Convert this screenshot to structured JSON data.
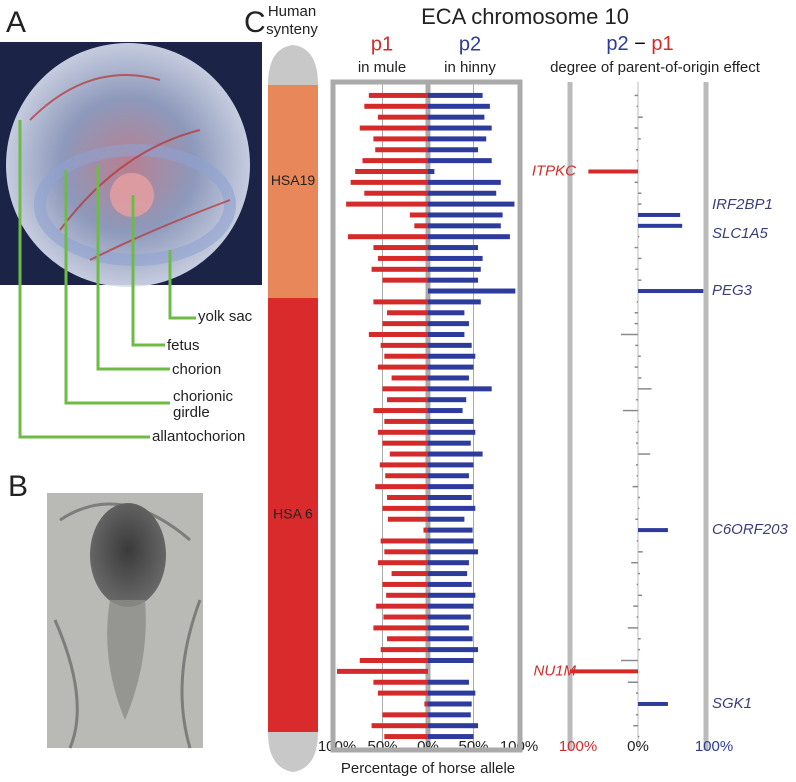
{
  "panels": {
    "A": {
      "label": "A",
      "annotations": [
        "yolk sac",
        "fetus",
        "chorion",
        [
          "chorionic",
          "girdle"
        ],
        "allantochorion"
      ]
    },
    "B": {
      "label": "B"
    },
    "C": {
      "label": "C",
      "synteny": {
        "title": [
          "Human",
          "synteny"
        ],
        "segments": [
          {
            "name": "HSA19",
            "color": "#e8875a"
          },
          {
            "name": "HSA 6",
            "color": "#d92b2b"
          }
        ]
      }
    }
  },
  "chart_data": {
    "type": "mirrored-bar",
    "title": "ECA chromosome 10",
    "x_label": "Percentage of horse allele",
    "xlim": [
      0,
      100
    ],
    "p1_xticks": [
      {
        "value": 100,
        "label": "100%"
      },
      {
        "value": 50,
        "label": "50%"
      }
    ],
    "p2_xticks": [
      {
        "value": 0,
        "label": "0%"
      },
      {
        "value": 50,
        "label": "50%"
      },
      {
        "value": 100,
        "label": "100%"
      }
    ],
    "series": [
      {
        "name": "p1",
        "subtitle": "in mule",
        "color": "#d42a2a",
        "values": [
          65,
          70,
          55,
          75,
          60,
          58,
          72,
          80,
          85,
          70,
          90,
          20,
          15,
          88,
          60,
          55,
          62,
          50,
          0,
          60,
          45,
          50,
          65,
          52,
          48,
          55,
          40,
          50,
          45,
          60,
          48,
          55,
          50,
          42,
          53,
          47,
          58,
          45,
          50,
          44,
          5,
          52,
          48,
          55,
          40,
          50,
          46,
          57,
          49,
          60,
          45,
          52,
          75,
          100,
          60,
          55,
          4,
          50,
          62,
          48
        ]
      },
      {
        "name": "p2",
        "subtitle": "in hinny",
        "color": "#2d3b9c",
        "values": [
          60,
          68,
          62,
          70,
          64,
          55,
          70,
          7,
          80,
          75,
          95,
          82,
          80,
          90,
          55,
          60,
          58,
          55,
          96,
          58,
          40,
          45,
          40,
          48,
          52,
          50,
          45,
          70,
          42,
          38,
          50,
          52,
          47,
          60,
          50,
          45,
          50,
          48,
          52,
          40,
          49,
          50,
          55,
          45,
          43,
          48,
          52,
          50,
          47,
          45,
          49,
          55,
          50,
          0,
          45,
          52,
          48,
          47,
          55,
          50
        ]
      }
    ],
    "diff": {
      "title_parts": [
        "p2",
        "−",
        "p1"
      ],
      "subtitle": "degree of parent-of-origin effect",
      "xlim": [
        -100,
        100
      ],
      "xticks": [
        {
          "value": -100,
          "label": "100%"
        },
        {
          "value": 0,
          "label": "0%"
        },
        {
          "value": 100,
          "label": "100%"
        }
      ],
      "color": "#8a8a8a",
      "values": [
        -5,
        -2,
        7,
        -5,
        4,
        -3,
        -2,
        -73,
        -5,
        5,
        5,
        62,
        65,
        2,
        -5,
        5,
        -4,
        5,
        96,
        -2,
        -5,
        -5,
        -25,
        -4,
        4,
        -5,
        5,
        20,
        -3,
        -22,
        2,
        -3,
        -3,
        18,
        -3,
        -2,
        -8,
        3,
        2,
        -4,
        44,
        -2,
        7,
        -10,
        3,
        -2,
        6,
        -7,
        -2,
        -15,
        4,
        3,
        -25,
        -100,
        -15,
        -3,
        44,
        -3,
        -7,
        2
      ],
      "row_labels": [
        null,
        null,
        null,
        null,
        null,
        null,
        null,
        "ITPKC",
        null,
        null,
        null,
        "IRF2BP1",
        "SLC1A5",
        null,
        null,
        null,
        null,
        null,
        "PEG3",
        null,
        null,
        null,
        null,
        null,
        null,
        null,
        null,
        null,
        null,
        null,
        null,
        null,
        null,
        null,
        null,
        null,
        null,
        null,
        null,
        null,
        "C6ORF203",
        null,
        null,
        null,
        null,
        null,
        null,
        null,
        null,
        null,
        null,
        null,
        null,
        "NU1M",
        null,
        null,
        "SGK1",
        null,
        null,
        null
      ]
    }
  }
}
